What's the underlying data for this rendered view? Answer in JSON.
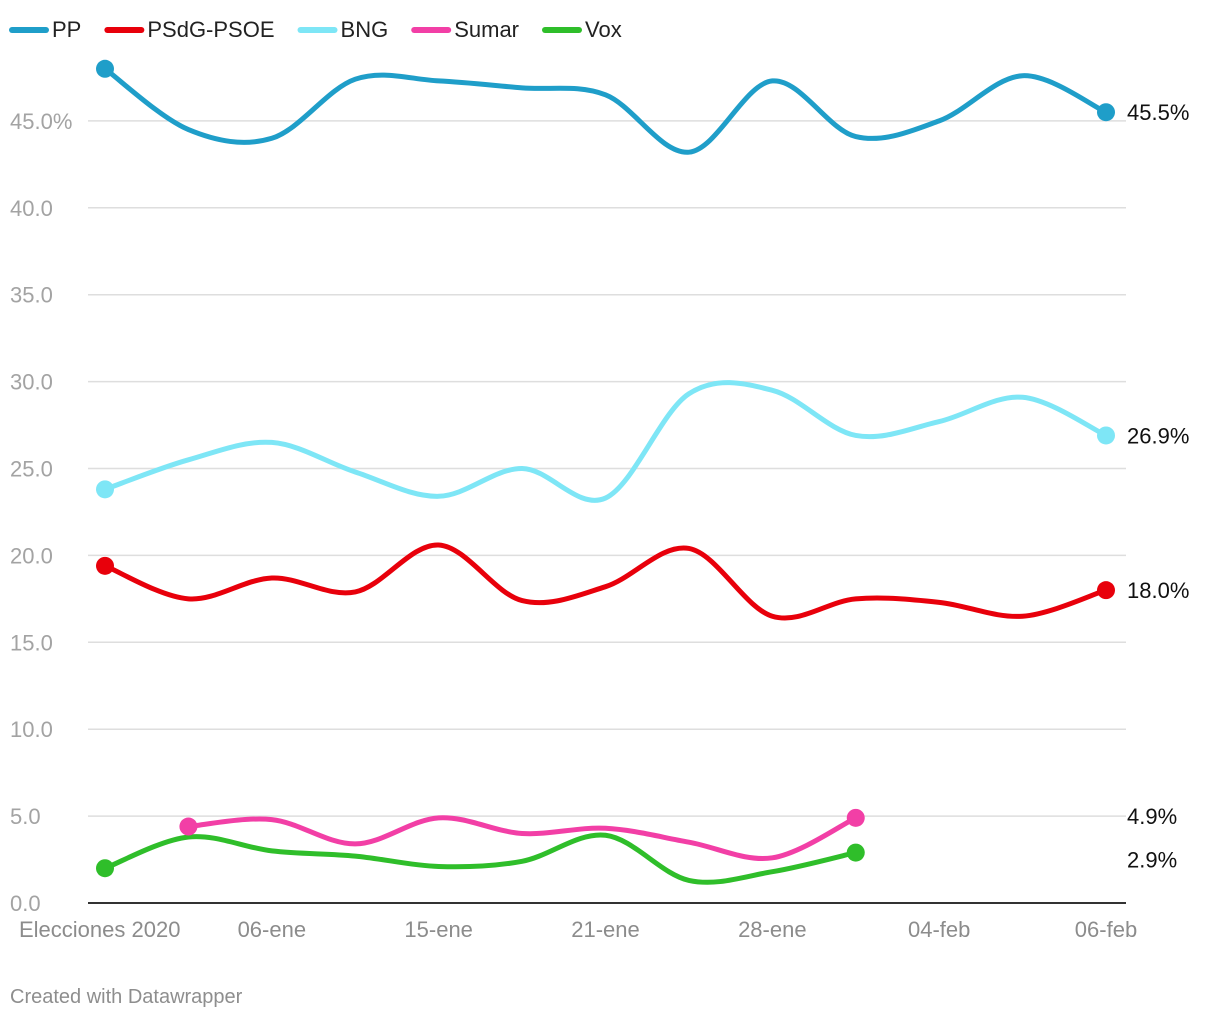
{
  "credit": "Created with Datawrapper",
  "chart_data": {
    "type": "line",
    "title": "",
    "xlabel": "",
    "ylabel": "",
    "ylim": [
      0,
      48
    ],
    "y_ticks": [
      {
        "value": 0,
        "label": "0.0"
      },
      {
        "value": 5,
        "label": "5.0"
      },
      {
        "value": 10,
        "label": "10.0"
      },
      {
        "value": 15,
        "label": "15.0"
      },
      {
        "value": 20,
        "label": "20.0"
      },
      {
        "value": 25,
        "label": "25.0"
      },
      {
        "value": 30,
        "label": "30.0"
      },
      {
        "value": 35,
        "label": "35.0"
      },
      {
        "value": 40,
        "label": "40.0"
      },
      {
        "value": 45,
        "label": "45.0%"
      }
    ],
    "x_ticks": [
      {
        "x": 0,
        "label": "Elecciones 2020"
      },
      {
        "x": 2,
        "label": "06-ene"
      },
      {
        "x": 4,
        "label": "15-ene"
      },
      {
        "x": 6,
        "label": "21-ene"
      },
      {
        "x": 8,
        "label": "28-ene"
      },
      {
        "x": 10,
        "label": "04-feb"
      },
      {
        "x": 12,
        "label": "06-feb"
      }
    ],
    "x_range": [
      0,
      12
    ],
    "legend_position": "top-left",
    "series": [
      {
        "name": "PP",
        "color": "#1f9ec9",
        "x": [
          0,
          1,
          2,
          3,
          4,
          5,
          6,
          7,
          8,
          9,
          10,
          11,
          12
        ],
        "values": [
          48.0,
          44.5,
          44.0,
          47.4,
          47.3,
          46.9,
          46.5,
          43.2,
          47.3,
          44.1,
          45.0,
          47.6,
          45.5
        ],
        "end_label": "45.5%"
      },
      {
        "name": "PSdG-PSOE",
        "color": "#e8000b",
        "x": [
          0,
          1,
          2,
          3,
          4,
          5,
          6,
          7,
          8,
          9,
          10,
          11,
          12
        ],
        "values": [
          19.4,
          17.5,
          18.7,
          17.9,
          20.6,
          17.4,
          18.2,
          20.4,
          16.5,
          17.5,
          17.3,
          16.5,
          18.0
        ],
        "end_label": "18.0%"
      },
      {
        "name": "BNG",
        "color": "#7ee6f6",
        "x": [
          0,
          1,
          2,
          3,
          4,
          5,
          6,
          7,
          8,
          9,
          10,
          11,
          12
        ],
        "values": [
          23.8,
          25.5,
          26.5,
          24.8,
          23.4,
          25.0,
          23.3,
          29.3,
          29.5,
          26.9,
          27.7,
          29.1,
          26.9
        ],
        "end_label": "26.9%"
      },
      {
        "name": "Sumar",
        "color": "#f23fa6",
        "x": [
          1,
          2,
          3,
          4,
          5,
          6,
          7,
          8,
          9
        ],
        "values": [
          4.4,
          4.8,
          3.4,
          4.9,
          4.0,
          4.3,
          3.5,
          2.6,
          4.9
        ],
        "end_label": "4.9%"
      },
      {
        "name": "Vox",
        "color": "#2fbe2a",
        "x": [
          0,
          1,
          2,
          3,
          4,
          5,
          6,
          7,
          8,
          9
        ],
        "values": [
          2.0,
          3.8,
          3.0,
          2.7,
          2.1,
          2.4,
          3.9,
          1.3,
          1.8,
          2.9
        ],
        "end_label": "2.9%"
      }
    ]
  }
}
